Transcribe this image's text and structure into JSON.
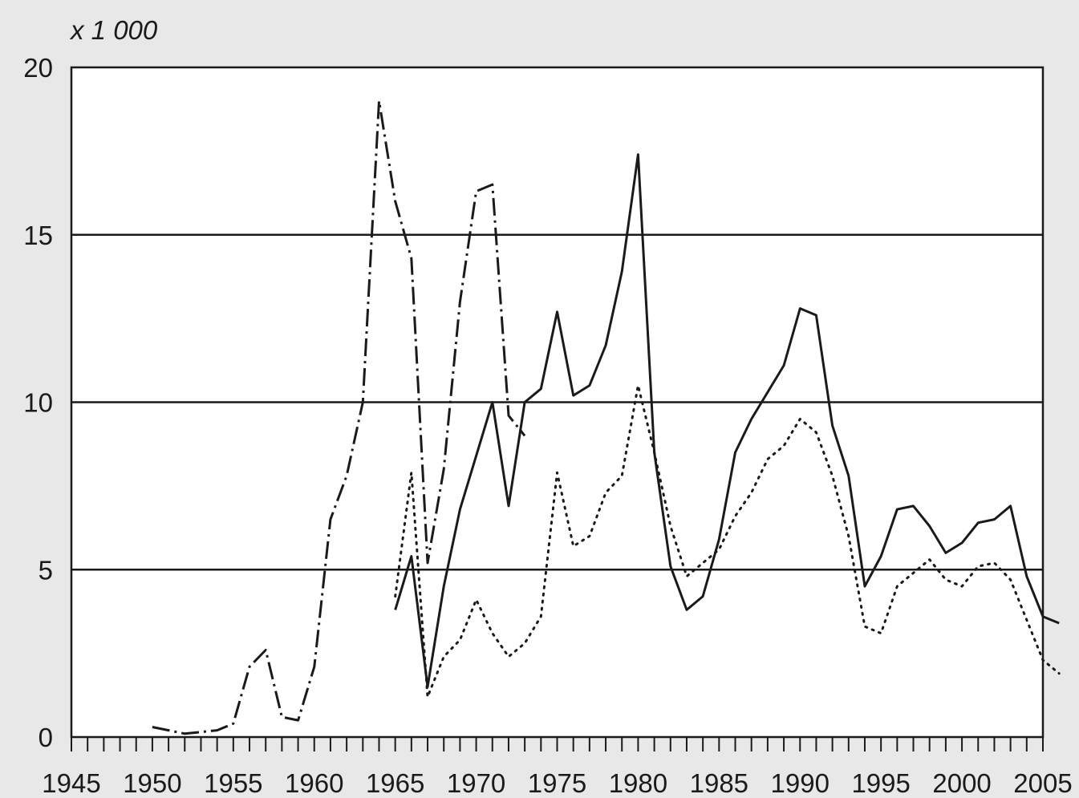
{
  "chart_data": {
    "type": "line",
    "title": "",
    "unit_label": "x 1 000",
    "xlabel": "",
    "ylabel": "",
    "xlim": [
      1945,
      2005
    ],
    "ylim": [
      0,
      20
    ],
    "x_ticks": [
      "1945",
      "1950",
      "1955",
      "1960",
      "1965",
      "1970",
      "1975",
      "1980",
      "1985",
      "1990",
      "1995",
      "2000",
      "2005"
    ],
    "y_ticks": [
      "0",
      "5",
      "10",
      "15",
      "20"
    ],
    "y_grid": [
      5,
      10,
      15
    ],
    "legend": "none",
    "series": [
      {
        "style": "solid",
        "color": "#1a1a1a",
        "points": [
          [
            1965,
            3.8
          ],
          [
            1966,
            5.4
          ],
          [
            1967,
            1.5
          ],
          [
            1968,
            4.5
          ],
          [
            1969,
            6.8
          ],
          [
            1970,
            8.4
          ],
          [
            1971,
            10.0
          ],
          [
            1972,
            6.9
          ],
          [
            1973,
            10.0
          ],
          [
            1974,
            10.4
          ],
          [
            1975,
            12.7
          ],
          [
            1976,
            10.2
          ],
          [
            1977,
            10.5
          ],
          [
            1978,
            11.7
          ],
          [
            1979,
            13.9
          ],
          [
            1980,
            17.4
          ],
          [
            1981,
            8.5
          ],
          [
            1982,
            5.1
          ],
          [
            1983,
            3.8
          ],
          [
            1984,
            4.2
          ],
          [
            1985,
            5.9
          ],
          [
            1986,
            8.5
          ],
          [
            1987,
            9.5
          ],
          [
            1988,
            10.3
          ],
          [
            1989,
            11.1
          ],
          [
            1990,
            12.8
          ],
          [
            1991,
            12.6
          ],
          [
            1992,
            9.3
          ],
          [
            1993,
            7.8
          ],
          [
            1994,
            4.5
          ],
          [
            1995,
            5.4
          ],
          [
            1996,
            6.8
          ],
          [
            1997,
            6.9
          ],
          [
            1998,
            6.3
          ],
          [
            1999,
            5.5
          ],
          [
            2000,
            5.8
          ],
          [
            2001,
            6.4
          ],
          [
            2002,
            6.5
          ],
          [
            2003,
            6.9
          ],
          [
            2004,
            4.8
          ],
          [
            2005,
            3.6
          ],
          [
            2006,
            3.4
          ]
        ]
      },
      {
        "style": "dotted",
        "color": "#1a1a1a",
        "points": [
          [
            1965,
            4.2
          ],
          [
            1966,
            7.9
          ],
          [
            1967,
            1.2
          ],
          [
            1968,
            2.4
          ],
          [
            1969,
            2.9
          ],
          [
            1970,
            4.1
          ],
          [
            1971,
            3.1
          ],
          [
            1972,
            2.4
          ],
          [
            1973,
            2.8
          ],
          [
            1974,
            3.6
          ],
          [
            1975,
            7.9
          ],
          [
            1976,
            5.7
          ],
          [
            1977,
            6.0
          ],
          [
            1978,
            7.3
          ],
          [
            1979,
            7.8
          ],
          [
            1980,
            10.5
          ],
          [
            1981,
            8.5
          ],
          [
            1982,
            6.3
          ],
          [
            1983,
            4.8
          ],
          [
            1984,
            5.2
          ],
          [
            1985,
            5.6
          ],
          [
            1986,
            6.6
          ],
          [
            1987,
            7.3
          ],
          [
            1988,
            8.3
          ],
          [
            1989,
            8.7
          ],
          [
            1990,
            9.5
          ],
          [
            1991,
            9.1
          ],
          [
            1992,
            7.8
          ],
          [
            1993,
            6.0
          ],
          [
            1994,
            3.3
          ],
          [
            1995,
            3.1
          ],
          [
            1996,
            4.5
          ],
          [
            1997,
            4.9
          ],
          [
            1998,
            5.3
          ],
          [
            1999,
            4.7
          ],
          [
            2000,
            4.5
          ],
          [
            2001,
            5.1
          ],
          [
            2002,
            5.2
          ],
          [
            2003,
            4.7
          ],
          [
            2004,
            3.5
          ],
          [
            2005,
            2.3
          ],
          [
            2006,
            1.9
          ]
        ]
      },
      {
        "style": "dash-dot",
        "color": "#1a1a1a",
        "points": [
          [
            1950,
            0.3
          ],
          [
            1951,
            0.2
          ],
          [
            1952,
            0.1
          ],
          [
            1953,
            0.15
          ],
          [
            1954,
            0.2
          ],
          [
            1955,
            0.4
          ],
          [
            1956,
            2.1
          ],
          [
            1957,
            2.6
          ],
          [
            1958,
            0.6
          ],
          [
            1959,
            0.5
          ],
          [
            1960,
            2.1
          ],
          [
            1961,
            6.5
          ],
          [
            1962,
            7.8
          ],
          [
            1963,
            10.0
          ],
          [
            1964,
            19.0
          ],
          [
            1965,
            16.0
          ],
          [
            1966,
            14.3
          ],
          [
            1967,
            5.2
          ],
          [
            1968,
            8.0
          ],
          [
            1969,
            13.0
          ],
          [
            1970,
            16.3
          ],
          [
            1971,
            16.5
          ],
          [
            1972,
            9.6
          ],
          [
            1973,
            9.0
          ]
        ]
      }
    ]
  }
}
